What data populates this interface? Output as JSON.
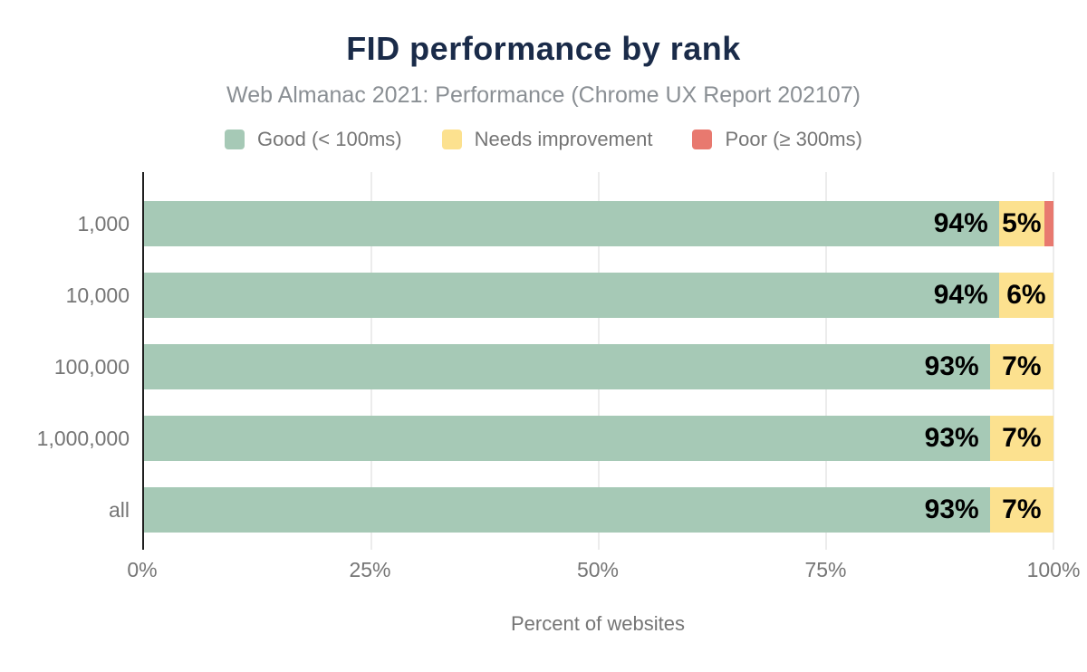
{
  "header": {
    "title": "FID performance by rank",
    "subtitle": "Web Almanac 2021: Performance (Chrome UX Report 202107)"
  },
  "colors": {
    "good": "#a6c9b6",
    "needs_improvement": "#fce18f",
    "poor": "#e8796f",
    "title_text": "#1a2b49",
    "muted_text": "#757575",
    "gridline": "#ececec",
    "axis_line": "#1f1f1f",
    "data_label": "#000000"
  },
  "legend": {
    "items": [
      {
        "key": "good",
        "label": "Good (< 100ms)",
        "color": "#a6c9b6"
      },
      {
        "key": "needs-improvement",
        "label": "Needs improvement",
        "color": "#fce18f"
      },
      {
        "key": "poor",
        "label": "Poor (≥ 300ms)",
        "color": "#e8796f"
      }
    ]
  },
  "chart_data": {
    "type": "bar",
    "orientation": "horizontal",
    "stacked": true,
    "title": "FID performance by rank",
    "subtitle": "Web Almanac 2021: Performance (Chrome UX Report 202107)",
    "categories": [
      "1,000",
      "10,000",
      "100,000",
      "1,000,000",
      "all"
    ],
    "series": [
      {
        "key": "good",
        "name": "Good (< 100ms)",
        "color": "#a6c9b6",
        "label_align": "right",
        "values": [
          94,
          94,
          93,
          93,
          93
        ],
        "labels": [
          "94%",
          "94%",
          "93%",
          "93%",
          "93%"
        ]
      },
      {
        "key": "needs-improvement",
        "name": "Needs improvement",
        "color": "#fce18f",
        "label_align": "center",
        "values": [
          5,
          6,
          7,
          7,
          7
        ],
        "labels": [
          "5%",
          "6%",
          "7%",
          "7%",
          "7%"
        ]
      },
      {
        "key": "poor",
        "name": "Poor (≥ 300ms)",
        "color": "#e8796f",
        "label_align": "none",
        "values": [
          1,
          0,
          0,
          0,
          0
        ],
        "labels": [
          "",
          "",
          "",
          "",
          ""
        ]
      }
    ],
    "xlabel": "Percent of websites",
    "ylabel": "",
    "xlim": [
      0,
      100
    ],
    "x_ticks": [
      "0%",
      "25%",
      "50%",
      "75%",
      "100%"
    ],
    "x_tick_values": [
      0,
      25,
      50,
      75,
      100
    ],
    "grid": "vertical",
    "legend_position": "top"
  }
}
